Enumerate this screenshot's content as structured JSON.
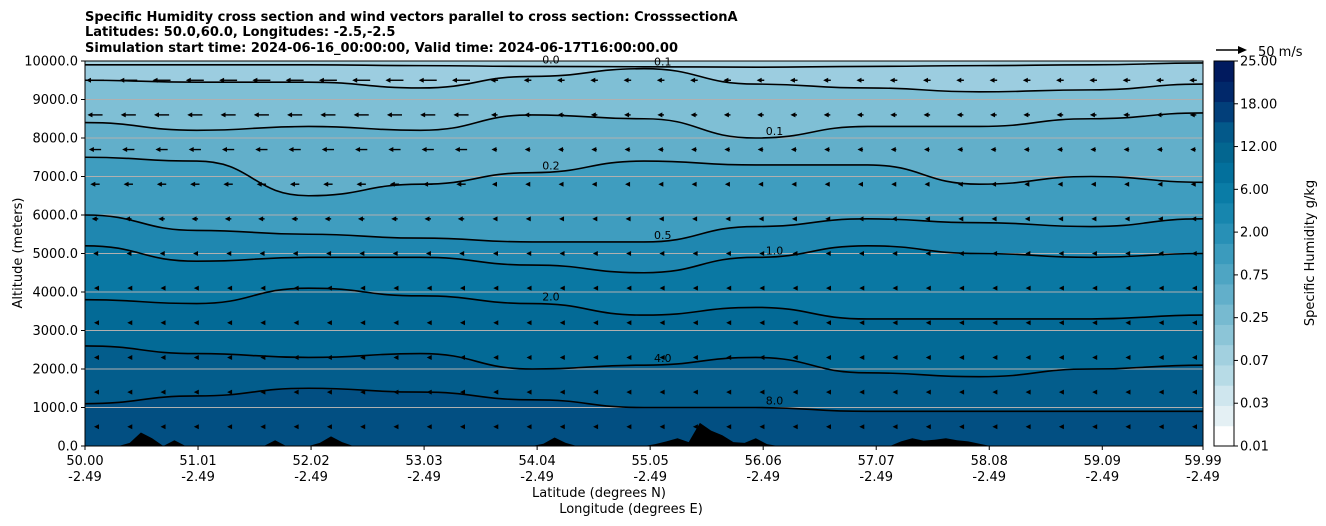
{
  "chart_data": {
    "type": "heatmap",
    "title_lines": [
      "Specific Humidity cross section and wind vectors parallel to cross section: CrosssectionA",
      "Latitudes: 50.0,60.0, Longitudes: -2.5,-2.5",
      "Simulation start time: 2024-06-16_00:00:00, Valid time: 2024-06-17T16:00:00.00"
    ],
    "xlabel_lat": "Latitude (degrees N)",
    "xlabel_lon": "Longitude (degrees E)",
    "ylabel": "Altitude (meters)",
    "colorbar_label": "Specific Humidity g/kg",
    "quiver_key_label": "50 m/s",
    "x_ticks": [
      {
        "lat": "50.00",
        "lon": "-2.49"
      },
      {
        "lat": "51.01",
        "lon": "-2.49"
      },
      {
        "lat": "52.02",
        "lon": "-2.49"
      },
      {
        "lat": "53.03",
        "lon": "-2.49"
      },
      {
        "lat": "54.04",
        "lon": "-2.49"
      },
      {
        "lat": "55.05",
        "lon": "-2.49"
      },
      {
        "lat": "56.06",
        "lon": "-2.49"
      },
      {
        "lat": "57.07",
        "lon": "-2.49"
      },
      {
        "lat": "58.08",
        "lon": "-2.49"
      },
      {
        "lat": "59.09",
        "lon": "-2.49"
      },
      {
        "lat": "59.99",
        "lon": "-2.49"
      }
    ],
    "xlim": [
      50.0,
      59.99
    ],
    "y_ticks": [
      "0.0",
      "1000.0",
      "2000.0",
      "3000.0",
      "4000.0",
      "5000.0",
      "6000.0",
      "7000.0",
      "8000.0",
      "9000.0",
      "10000.0"
    ],
    "ylim": [
      0,
      10000
    ],
    "grid": "horizontal",
    "colorbar_ticks": [
      "0.01",
      "0.03",
      "0.07",
      "0.25",
      "0.75",
      "2.00",
      "6.00",
      "12.00",
      "18.00",
      "25.00"
    ],
    "colorbar_levels": [
      0.01,
      0.02,
      0.03,
      0.05,
      0.07,
      0.1,
      0.25,
      0.5,
      0.75,
      1.0,
      2.0,
      4.0,
      6.0,
      8.0,
      12.0,
      14.0,
      18.0,
      20.0,
      25.0
    ],
    "colorbar_colors": [
      "#ffffff",
      "#e4f0f4",
      "#cfe6ee",
      "#b7dbe6",
      "#a2d0df",
      "#8cc5d7",
      "#77bad0",
      "#62afca",
      "#4ea5c3",
      "#3b9bbd",
      "#2890b6",
      "#1786ae",
      "#0a7ca6",
      "#03709c",
      "#036690",
      "#03598a",
      "#023f7a",
      "#01286a",
      "#011a5e"
    ],
    "contours": [
      {
        "level": "0.0",
        "alt": [
          9900,
          9900,
          9900,
          9880,
          9860,
          9850,
          9840,
          9860,
          9880,
          9900,
          9950
        ]
      },
      {
        "level": "0.1",
        "alt": [
          9500,
          9450,
          9450,
          9300,
          9600,
          9800,
          9400,
          9300,
          9200,
          9250,
          9400
        ]
      },
      {
        "level": "0.1",
        "alt": [
          8400,
          8200,
          8300,
          8200,
          8600,
          8500,
          8000,
          8300,
          8300,
          8500,
          8650
        ]
      },
      {
        "level": "0.2",
        "alt": [
          7500,
          7400,
          6500,
          6800,
          7100,
          7400,
          7300,
          7300,
          6800,
          7000,
          6850
        ]
      },
      {
        "level": "0.5",
        "alt": [
          6000,
          5600,
          5500,
          5400,
          5300,
          5300,
          5700,
          5900,
          5800,
          5700,
          5900
        ]
      },
      {
        "level": "1.0",
        "alt": [
          5200,
          4800,
          4900,
          4900,
          4700,
          4500,
          4900,
          5200,
          5000,
          4900,
          5000
        ]
      },
      {
        "level": "2.0",
        "alt": [
          3800,
          3700,
          4100,
          3900,
          3700,
          3400,
          3600,
          3300,
          3300,
          3300,
          3400
        ]
      },
      {
        "level": "4.0",
        "alt": [
          2600,
          2400,
          2300,
          2400,
          2000,
          2100,
          2300,
          1900,
          1800,
          2000,
          2100
        ]
      },
      {
        "level": "8.0",
        "alt": [
          1100,
          1300,
          1500,
          1400,
          1200,
          1000,
          1000,
          900,
          900,
          900,
          900
        ]
      }
    ],
    "terrain": [
      0,
      0,
      0,
      0,
      80,
      350,
      200,
      0,
      150,
      0,
      0,
      0,
      0,
      0,
      0,
      0,
      0,
      150,
      0,
      0,
      0,
      80,
      250,
      100,
      0,
      0,
      0,
      0,
      0,
      0,
      0,
      0,
      0,
      0,
      0,
      0,
      0,
      0,
      0,
      0,
      0,
      60,
      220,
      80,
      0,
      0,
      0,
      0,
      0,
      0,
      0,
      50,
      120,
      200,
      100,
      600,
      400,
      280,
      100,
      80,
      200,
      50,
      0,
      0,
      0,
      0,
      0,
      0,
      0,
      0,
      0,
      0,
      0,
      120,
      200,
      140,
      160,
      200,
      150,
      120,
      60,
      0,
      0,
      0,
      0,
      0,
      0,
      0,
      0,
      0,
      0,
      0,
      0,
      0,
      0,
      0,
      0,
      0,
      0,
      0,
      0
    ]
  }
}
